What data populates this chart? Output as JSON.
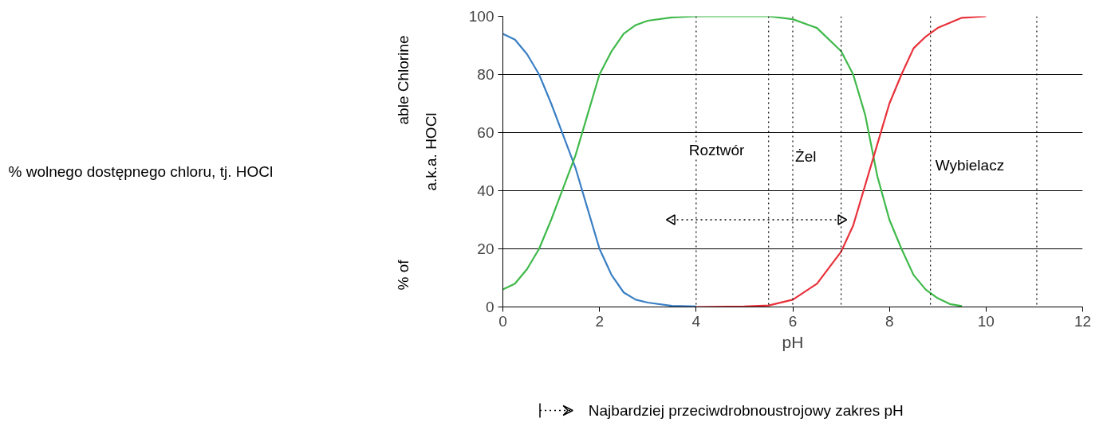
{
  "chart_data": {
    "type": "line",
    "xlabel": "pH",
    "xlim": [
      0,
      12
    ],
    "ylim": [
      0,
      100
    ],
    "xticks": [
      0,
      2,
      4,
      6,
      8,
      10,
      12
    ],
    "yticks": [
      0,
      20,
      40,
      60,
      80,
      100
    ],
    "grid": "y",
    "legend": "bottom",
    "marker": "none",
    "line_style": "solid",
    "series": [
      {
        "color": "#3a7fc4",
        "x": [
          0,
          0.25,
          0.5,
          0.75,
          1,
          1.25,
          1.5,
          1.75,
          2,
          2.25,
          2.5,
          2.75,
          3,
          3.5,
          4
        ],
        "values": [
          94,
          92,
          87,
          80,
          70,
          59,
          48,
          34,
          20,
          11,
          5,
          2.5,
          1.5,
          0.4,
          0.2
        ]
      },
      {
        "color": "#3fb94a",
        "x": [
          0,
          0.25,
          0.5,
          0.75,
          1,
          1.25,
          1.5,
          1.75,
          2,
          2.25,
          2.5,
          2.75,
          3,
          3.5,
          4,
          5.5,
          6,
          6.5,
          7,
          7.25,
          7.5,
          7.75,
          8,
          8.25,
          8.5,
          8.75,
          9,
          9.25,
          9.5
        ],
        "values": [
          6,
          8,
          13,
          20,
          30,
          41,
          52,
          66,
          80,
          88,
          94,
          97,
          98.5,
          99.6,
          100,
          100,
          99,
          96,
          88,
          80,
          66,
          45,
          30,
          20,
          11,
          6,
          3,
          1,
          0.3
        ]
      },
      {
        "color": "#e8313a",
        "x": [
          4,
          5,
          5.5,
          6,
          6.5,
          7,
          7.25,
          7.5,
          7.75,
          8,
          8.25,
          8.5,
          8.75,
          9,
          9.5,
          10
        ],
        "values": [
          0,
          0.2,
          0.5,
          2.5,
          8,
          19,
          28,
          42,
          56,
          70,
          80,
          89,
          93,
          96,
          99.5,
          100
        ]
      },
      {
        "name": "Najbardziej przeciwdrobnoustrojowy zakres pH",
        "color": "#000000",
        "line_style": "dotted",
        "marker": "triangle",
        "x": [
          3.5,
          7
        ],
        "values": [
          30,
          30
        ]
      }
    ],
    "ref_lines": [
      {
        "axis": "x",
        "value": 4,
        "color": "#000000",
        "line_style": "dotted"
      },
      {
        "axis": "x",
        "value": 5.5,
        "color": "#000000",
        "line_style": "dotted"
      },
      {
        "axis": "x",
        "value": 6,
        "color": "#000000",
        "line_style": "dotted"
      },
      {
        "axis": "x",
        "value": 7,
        "color": "#000000",
        "line_style": "dotted"
      },
      {
        "axis": "x",
        "value": 8.85,
        "color": "#000000",
        "line_style": "dotted"
      },
      {
        "axis": "x",
        "value": 11.05,
        "color": "#000000",
        "line_style": "dotted"
      }
    ],
    "annotations": [
      "% wolnego dostępnego chloru, tj. HOCl",
      "% of",
      "able Chlorine",
      "a.k.a. HOCl",
      "Roztwór",
      "Żel",
      "Wybielacz"
    ]
  }
}
